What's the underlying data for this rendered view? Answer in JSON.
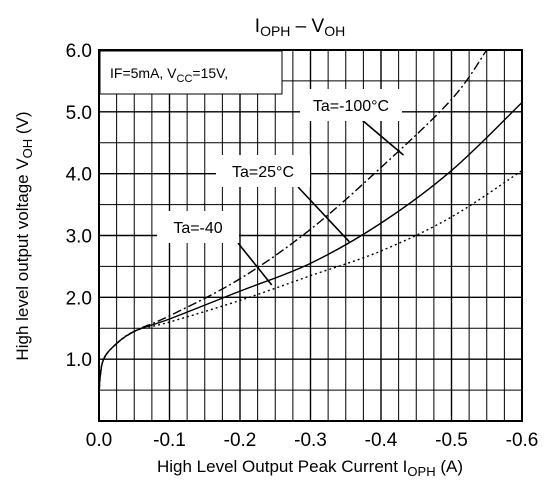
{
  "chart_data": {
    "type": "line",
    "title": {
      "main": "I",
      "main_sub": "OPH",
      "sep": " – V",
      "sep_sub": "OH"
    },
    "xlabel": {
      "main": "High Level Output Peak Current I",
      "sub": "OPH",
      "tail": " (A)"
    },
    "ylabel": {
      "main": "High level output voltage   V",
      "sub": "OH",
      "tail": "   (V)"
    },
    "xlim": [
      0,
      -0.6
    ],
    "ylim": [
      0,
      6.0
    ],
    "x_ticks": [
      0.0,
      -0.1,
      -0.2,
      -0.3,
      -0.4,
      -0.5,
      -0.6
    ],
    "x_tick_labels": [
      "0.0",
      "-0.1",
      "-0.2",
      "-0.3",
      "-0.4",
      "-0.5",
      "-0.6"
    ],
    "y_ticks": [
      1.0,
      2.0,
      3.0,
      4.0,
      5.0,
      6.0
    ],
    "y_tick_labels": [
      "1.0",
      "2.0",
      "3.0",
      "4.0",
      "5.0",
      "6.0"
    ],
    "grid": true,
    "condition": {
      "text": "IF=5mA, V",
      "sub": "CC",
      "tail": "=15V,"
    },
    "series": [
      {
        "name": "Ta=-100°C",
        "style": "dash-dot",
        "x": [
          0,
          -0.005,
          -0.02,
          -0.05,
          -0.1,
          -0.2,
          -0.3,
          -0.4,
          -0.5,
          -0.55
        ],
        "y": [
          0.45,
          0.95,
          1.2,
          1.45,
          1.7,
          2.3,
          3.1,
          4.1,
          5.2,
          6.0
        ]
      },
      {
        "name": "Ta=25°C",
        "style": "solid",
        "x": [
          0,
          -0.005,
          -0.02,
          -0.05,
          -0.1,
          -0.2,
          -0.3,
          -0.4,
          -0.5,
          -0.6
        ],
        "y": [
          0.5,
          0.95,
          1.2,
          1.45,
          1.65,
          2.1,
          2.55,
          3.2,
          4.05,
          5.15
        ]
      },
      {
        "name": "Ta=-40",
        "style": "dotted",
        "x": [
          0,
          -0.005,
          -0.02,
          -0.05,
          -0.1,
          -0.2,
          -0.3,
          -0.4,
          -0.5,
          -0.6
        ],
        "y": [
          0.55,
          0.95,
          1.2,
          1.45,
          1.6,
          1.95,
          2.35,
          2.75,
          3.3,
          4.05
        ]
      }
    ],
    "annotations": [
      {
        "text": "Ta=-100°C",
        "series": 0
      },
      {
        "text": "Ta=25°C",
        "series": 1
      },
      {
        "text": "Ta=-40",
        "series": 2
      }
    ]
  }
}
